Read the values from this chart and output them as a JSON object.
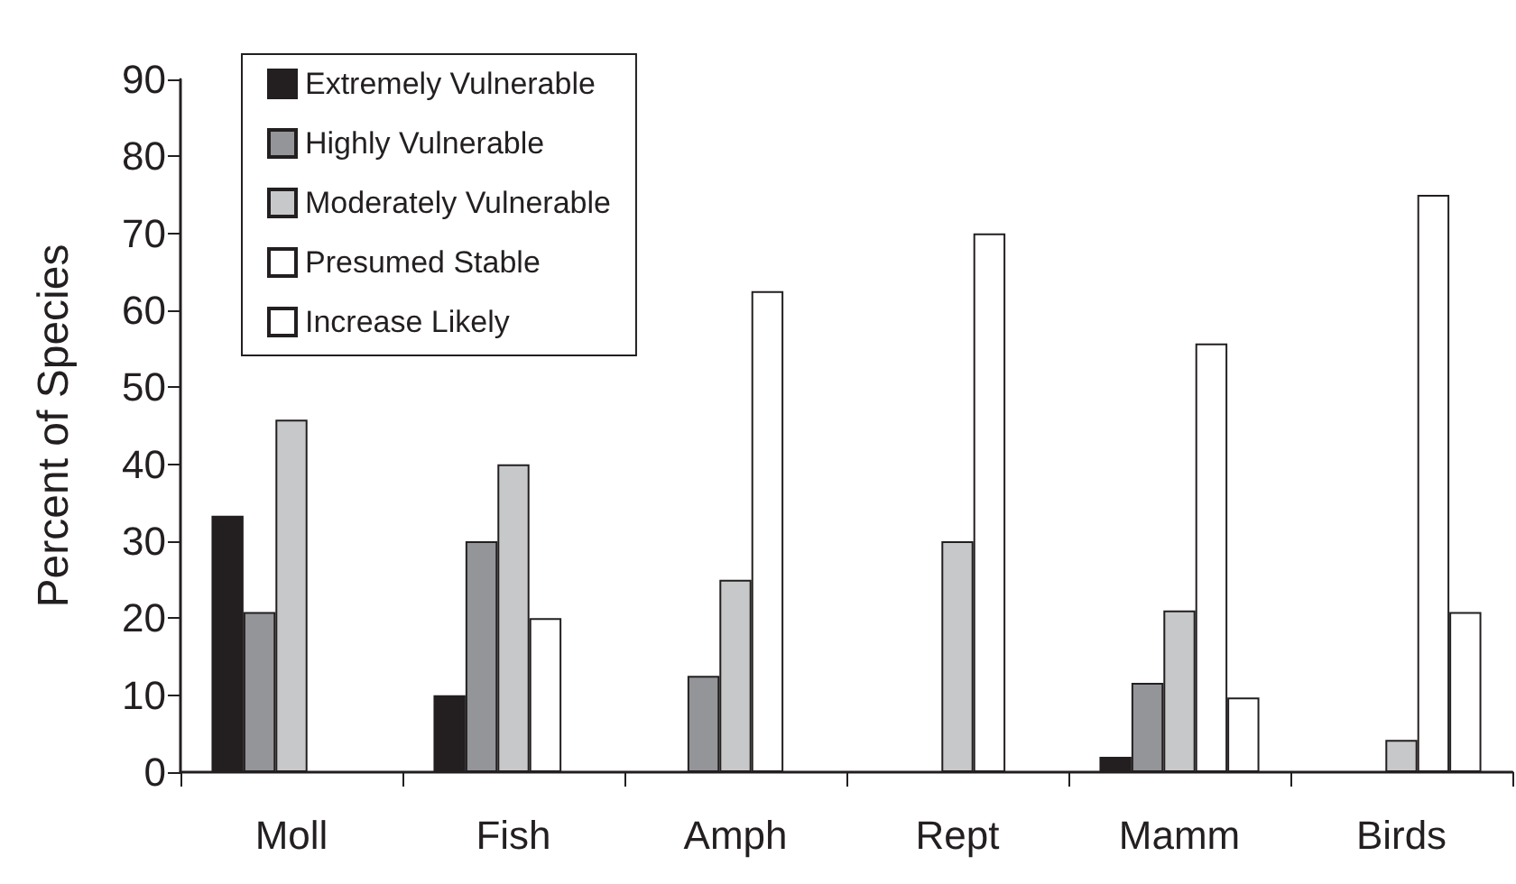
{
  "chart_data": {
    "type": "bar",
    "ylabel": "Percent of Species",
    "categories": [
      "Moll",
      "Fish",
      "Amph",
      "Rept",
      "Mamm",
      "Birds"
    ],
    "series": [
      {
        "name": "Extremely Vulnerable",
        "color": "#231f20",
        "values": [
          33.3,
          10,
          0,
          0,
          2,
          0
        ]
      },
      {
        "name": "Highly Vulnerable",
        "color": "#939598",
        "values": [
          20.8,
          30,
          12.5,
          0,
          11.6,
          0
        ]
      },
      {
        "name": "Moderately Vulnerable",
        "color": "#c7c8ca",
        "values": [
          45.8,
          40,
          25,
          30,
          21,
          4.2
        ]
      },
      {
        "name": "Presumed Stable",
        "color": "#ffffff",
        "values": [
          0,
          20,
          62.5,
          70,
          55.7,
          75
        ]
      },
      {
        "name": "Increase Likely",
        "color": "#ffffff",
        "values": [
          0,
          0,
          0,
          0,
          9.7,
          20.8
        ]
      }
    ],
    "ylim": [
      0,
      90
    ],
    "yticks": [
      0,
      10,
      20,
      30,
      40,
      50,
      60,
      70,
      80,
      90
    ],
    "grid": false,
    "legend": "top left"
  }
}
